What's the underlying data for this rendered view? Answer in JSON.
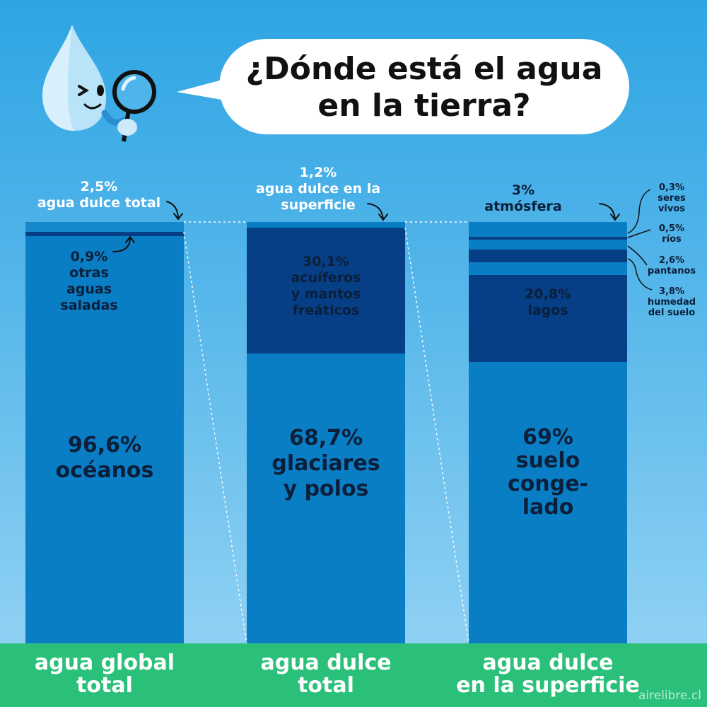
{
  "title": "¿Dónde está el agua\nen la tierra?",
  "credit": "airelibre.cl",
  "chart_data": {
    "type": "bar",
    "stacked": true,
    "categories": [
      "agua global\ntotal",
      "agua dulce\ntotal",
      "agua dulce\nen la superficie"
    ],
    "series": [
      {
        "bar": "agua global total",
        "segments": [
          {
            "label": "96,6%\nocéanos",
            "value": 96.6
          },
          {
            "label": "0,9%\notras\naguas\nsaladas",
            "value": 0.9
          },
          {
            "label": "2,5%\nagua dulce total",
            "value": 2.5
          }
        ]
      },
      {
        "bar": "agua dulce total",
        "segments": [
          {
            "label": "68,7%\nglaciares\ny polos",
            "value": 68.7
          },
          {
            "label": "30,1%\nacuíferos\ny mantos\nfreáticos",
            "value": 30.1
          },
          {
            "label": "1,2%\nagua dulce en la\nsuperficie",
            "value": 1.2
          }
        ]
      },
      {
        "bar": "agua dulce en la superficie",
        "segments": [
          {
            "label": "69%\nsuelo\nconge-\nlado",
            "value": 69
          },
          {
            "label": "20,8%\nlagos",
            "value": 20.8
          },
          {
            "label": "3,8%\nhumedad\ndel suelo",
            "value": 3.8
          },
          {
            "label": "2,6%\npantanos",
            "value": 2.6
          },
          {
            "label": "0,5%\nríos",
            "value": 0.5
          },
          {
            "label": "0,3%\nseres\nvivos",
            "value": 0.3
          },
          {
            "label": "3%\natmósfera",
            "value": 3
          }
        ]
      }
    ],
    "colors": {
      "light": "#0a7ec4",
      "dark": "#063f86",
      "sky": "#2ea5e3",
      "footer": "#2bc07a"
    }
  }
}
